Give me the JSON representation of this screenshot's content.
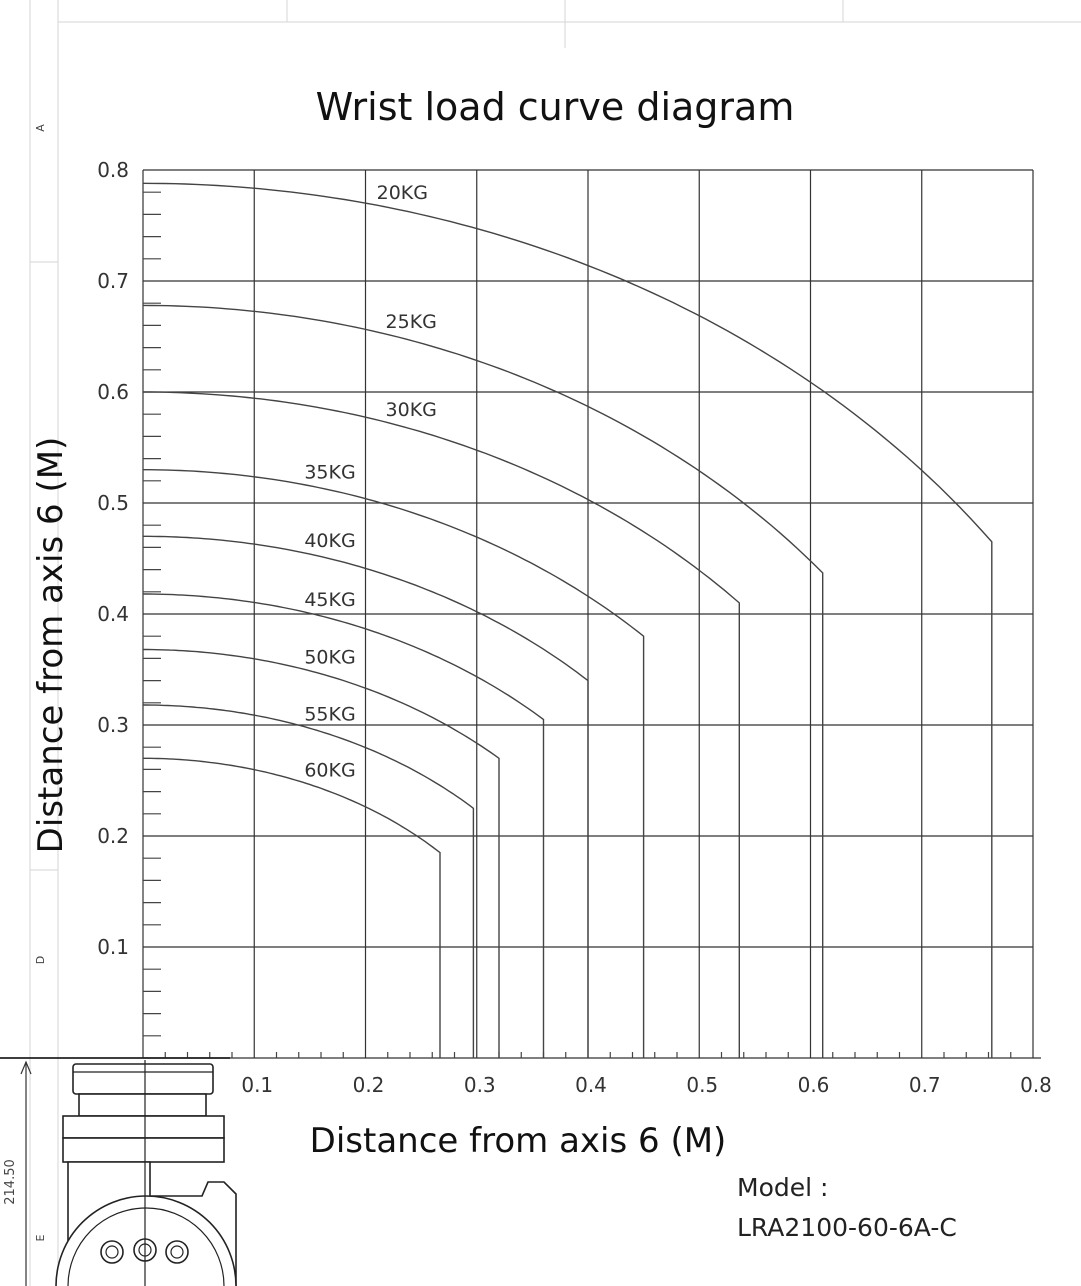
{
  "chart_data": {
    "type": "line",
    "title": "Wrist load curve diagram",
    "xlabel": "Distance from axis 6 (M)",
    "ylabel": "Distance from axis 6 (M)",
    "xlim": [
      0,
      0.8
    ],
    "ylim": [
      0,
      0.8
    ],
    "x_ticks": [
      "0.1",
      "0.2",
      "0.3",
      "0.4",
      "0.5",
      "0.6",
      "0.7",
      "0.8"
    ],
    "y_ticks": [
      "0.1",
      "0.2",
      "0.3",
      "0.4",
      "0.5",
      "0.6",
      "0.7",
      "0.8"
    ],
    "grid": true,
    "series": [
      {
        "name": "20KG",
        "y_at_zero": 0.788,
        "x_max": 0.763,
        "drop_to": 0.465
      },
      {
        "name": "25KG",
        "y_at_zero": 0.678,
        "x_max": 0.611,
        "drop_to": 0.437
      },
      {
        "name": "30KG",
        "y_at_zero": 0.6,
        "x_max": 0.536,
        "drop_to": 0.41
      },
      {
        "name": "35KG",
        "y_at_zero": 0.53,
        "x_max": 0.45,
        "drop_to": 0.38
      },
      {
        "name": "40KG",
        "y_at_zero": 0.47,
        "x_max": 0.4,
        "drop_to": 0.34
      },
      {
        "name": "45KG",
        "y_at_zero": 0.418,
        "x_max": 0.36,
        "drop_to": 0.305
      },
      {
        "name": "50KG",
        "y_at_zero": 0.368,
        "x_max": 0.32,
        "drop_to": 0.27
      },
      {
        "name": "55KG",
        "y_at_zero": 0.318,
        "x_max": 0.297,
        "drop_to": 0.225
      },
      {
        "name": "60KG",
        "y_at_zero": 0.27,
        "x_max": 0.267,
        "drop_to": 0.185
      }
    ]
  },
  "model": {
    "line1": "Model :",
    "line2": "LRA2100-60-6A-C"
  },
  "drawing_frame": {
    "row_letters": [
      "A",
      "D",
      "E"
    ],
    "dimension": "214.50"
  }
}
